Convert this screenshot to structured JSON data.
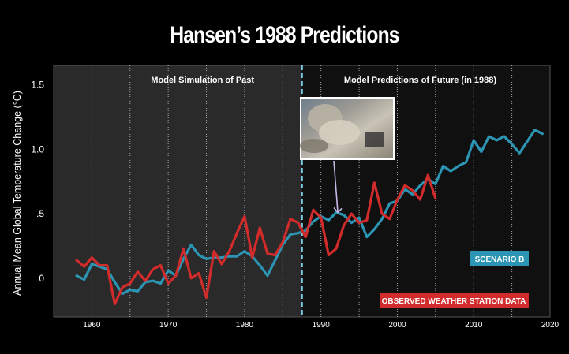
{
  "title": "Hansen’s 1988 Predictions",
  "colors": {
    "scenario_b": "#2b95b3",
    "observed": "#d22b2b",
    "divider": "#7fd0ee",
    "panel_past": "#2a2a2a",
    "panel_future": "#101010"
  },
  "chart_data": {
    "type": "line",
    "ylabel": "Annual Mean Global Temperature Change (°C)",
    "xlabel": "",
    "xlim": [
      1955,
      2020
    ],
    "ylim": [
      -0.3,
      1.65
    ],
    "xticks": [
      1960,
      1970,
      1980,
      1990,
      2000,
      2010,
      2020
    ],
    "yticks": [
      {
        "value": 0,
        "label": "0"
      },
      {
        "value": 0.5,
        "label": ".5"
      },
      {
        "value": 1.0,
        "label": "1.0"
      },
      {
        "value": 1.5,
        "label": "1.5"
      }
    ],
    "grid": "vertical dotted lines every 5 years",
    "divider_year": 1987.5,
    "region_labels": {
      "past": "Model Simulation of Past",
      "future": "Model Predictions of Future (in 1988)"
    },
    "inset_image": "eruption-photo",
    "inset_pointer_year": 1992,
    "series": [
      {
        "name": "SCENARIO B",
        "x": [
          1958,
          1959,
          1960,
          1961,
          1962,
          1963,
          1964,
          1965,
          1966,
          1967,
          1968,
          1969,
          1970,
          1971,
          1972,
          1973,
          1974,
          1975,
          1976,
          1977,
          1978,
          1979,
          1980,
          1981,
          1982,
          1983,
          1984,
          1985,
          1986,
          1987,
          1988,
          1989,
          1990,
          1991,
          1992,
          1993,
          1994,
          1995,
          1996,
          1997,
          1998,
          1999,
          2000,
          2001,
          2002,
          2003,
          2004,
          2005,
          2006,
          2007,
          2008,
          2009,
          2010,
          2011,
          2012,
          2013,
          2014,
          2015,
          2016,
          2017,
          2018,
          2019
        ],
        "values": [
          0.02,
          -0.01,
          0.11,
          0.09,
          0.07,
          -0.03,
          -0.12,
          -0.09,
          -0.1,
          -0.03,
          -0.02,
          -0.04,
          0.06,
          0.02,
          0.15,
          0.26,
          0.18,
          0.15,
          0.16,
          0.16,
          0.17,
          0.17,
          0.21,
          0.17,
          0.1,
          0.02,
          0.14,
          0.26,
          0.34,
          0.35,
          0.37,
          0.44,
          0.48,
          0.45,
          0.51,
          0.49,
          0.43,
          0.47,
          0.32,
          0.38,
          0.46,
          0.58,
          0.6,
          0.69,
          0.65,
          0.72,
          0.77,
          0.73,
          0.87,
          0.83,
          0.87,
          0.9,
          1.07,
          0.98,
          1.1,
          1.07,
          1.1,
          1.04,
          0.97,
          1.06,
          1.15,
          1.12
        ]
      },
      {
        "name": "OBSERVED WEATHER STATION DATA",
        "x": [
          1958,
          1959,
          1960,
          1961,
          1962,
          1963,
          1964,
          1965,
          1966,
          1967,
          1968,
          1969,
          1970,
          1971,
          1972,
          1973,
          1974,
          1975,
          1976,
          1977,
          1978,
          1979,
          1980,
          1981,
          1982,
          1983,
          1984,
          1985,
          1986,
          1987,
          1988,
          1989,
          1990,
          1991,
          1992,
          1993,
          1994,
          1995,
          1996,
          1997,
          1998,
          1999,
          2000,
          2001,
          2002,
          2003,
          2004,
          2005
        ],
        "values": [
          0.14,
          0.09,
          0.16,
          0.1,
          0.1,
          -0.2,
          -0.07,
          -0.04,
          0.05,
          -0.02,
          0.07,
          0.1,
          -0.04,
          0.02,
          0.23,
          0.0,
          0.04,
          -0.15,
          0.21,
          0.11,
          0.21,
          0.35,
          0.48,
          0.16,
          0.39,
          0.19,
          0.18,
          0.28,
          0.46,
          0.43,
          0.32,
          0.53,
          0.47,
          0.18,
          0.23,
          0.41,
          0.5,
          0.43,
          0.45,
          0.74,
          0.5,
          0.46,
          0.61,
          0.72,
          0.68,
          0.61,
          0.8,
          0.62
        ]
      }
    ]
  }
}
